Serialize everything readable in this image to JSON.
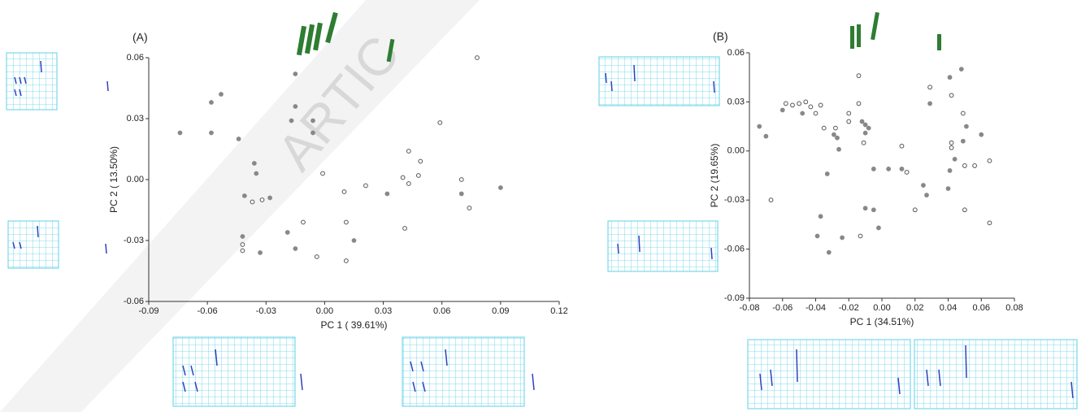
{
  "watermark": "ARTIC",
  "chart_data": [
    {
      "type": "scatter",
      "title": "(A)",
      "xlabel": "PC 1 ( 39.61%)",
      "ylabel": "PC 2 ( 13.50%)",
      "xlim": [
        -0.09,
        0.12
      ],
      "ylim": [
        -0.06,
        0.06
      ],
      "xticks": [
        -0.09,
        -0.06,
        -0.03,
        {
          "value": 0,
          "label": "0.00"
        },
        0.03,
        0.06,
        0.09,
        0.12
      ],
      "yticks": [
        -0.06,
        -0.03,
        {
          "value": 0,
          "label": "0.00"
        },
        0.03,
        0.06
      ],
      "series": [
        {
          "color": "#888888",
          "marker": "filled",
          "x": [
            -0.074,
            -0.058,
            -0.053,
            -0.058,
            -0.044,
            -0.036,
            -0.035,
            -0.041,
            -0.028,
            -0.015,
            -0.015,
            -0.017,
            -0.006,
            -0.006,
            -0.019,
            -0.015,
            -0.033,
            -0.042,
            0.015,
            0.032,
            0.07,
            0.09
          ],
          "values": [
            0.023,
            0.038,
            0.042,
            0.023,
            0.02,
            0.008,
            0.003,
            -0.008,
            -0.009,
            0.052,
            0.036,
            0.029,
            0.029,
            0.023,
            -0.026,
            -0.034,
            -0.036,
            -0.028,
            -0.03,
            -0.007,
            -0.007,
            -0.004
          ]
        },
        {
          "color": "#555555",
          "marker": "open",
          "x": [
            0.078,
            0.059,
            0.043,
            0.049,
            0.048,
            0.04,
            0.043,
            0.021,
            0.01,
            0.07,
            0.074,
            0.041,
            0.011,
            0.011,
            -0.004,
            -0.001,
            -0.011,
            -0.032,
            -0.037,
            -0.042,
            -0.042
          ],
          "values": [
            0.06,
            0.028,
            0.014,
            0.009,
            0.002,
            0.001,
            -0.002,
            -0.003,
            -0.006,
            0.0,
            -0.014,
            -0.024,
            -0.021,
            -0.04,
            -0.038,
            0.003,
            -0.021,
            -0.01,
            -0.011,
            -0.032,
            -0.035
          ]
        }
      ]
    },
    {
      "type": "scatter",
      "title": "(B)",
      "xlabel": "PC 1 (34.51%)",
      "ylabel": "PC 2 (19.65%)",
      "xlim": [
        -0.08,
        0.08
      ],
      "ylim": [
        -0.09,
        0.06
      ],
      "xticks": [
        -0.08,
        -0.06,
        -0.04,
        -0.02,
        {
          "value": 0,
          "label": "0.00"
        },
        0.02,
        0.04,
        0.06,
        0.08
      ],
      "yticks": [
        -0.09,
        -0.06,
        -0.03,
        {
          "value": 0,
          "label": "0.00"
        },
        0.03,
        0.06
      ],
      "series": [
        {
          "color": "#888888",
          "marker": "filled",
          "x": [
            -0.074,
            -0.07,
            -0.06,
            -0.048,
            -0.029,
            -0.027,
            -0.026,
            -0.033,
            -0.039,
            -0.032,
            -0.037,
            -0.024,
            -0.012,
            -0.01,
            -0.008,
            -0.01,
            -0.01,
            -0.005,
            -0.002,
            -0.005,
            0.004,
            0.012,
            0.025,
            0.027,
            0.041,
            0.048,
            0.051,
            0.049,
            0.06,
            0.041,
            0.044,
            0.04,
            0.029
          ],
          "values": [
            0.015,
            0.009,
            0.025,
            0.023,
            0.01,
            0.008,
            0.001,
            -0.014,
            -0.052,
            -0.062,
            -0.04,
            -0.053,
            0.018,
            0.016,
            0.014,
            0.011,
            -0.035,
            -0.036,
            -0.047,
            -0.011,
            -0.011,
            -0.011,
            -0.021,
            -0.027,
            0.045,
            0.05,
            0.015,
            0.006,
            0.01,
            -0.012,
            -0.005,
            -0.023,
            0.029
          ]
        },
        {
          "color": "#555555",
          "marker": "open",
          "x": [
            -0.067,
            -0.058,
            -0.054,
            -0.05,
            -0.046,
            -0.043,
            -0.037,
            -0.04,
            -0.035,
            -0.028,
            -0.02,
            -0.02,
            -0.014,
            -0.014,
            -0.011,
            -0.013,
            0.012,
            0.015,
            0.029,
            0.042,
            0.042,
            0.042,
            0.049,
            0.056,
            0.05,
            0.05,
            0.065,
            0.065,
            0.02
          ],
          "values": [
            -0.03,
            0.029,
            0.028,
            0.029,
            0.03,
            0.027,
            0.028,
            0.023,
            0.014,
            0.014,
            0.018,
            0.023,
            0.046,
            0.029,
            0.005,
            -0.052,
            0.003,
            -0.013,
            0.039,
            0.034,
            0.005,
            0.002,
            0.023,
            -0.009,
            -0.009,
            -0.036,
            -0.006,
            -0.044,
            -0.036
          ]
        }
      ]
    }
  ]
}
